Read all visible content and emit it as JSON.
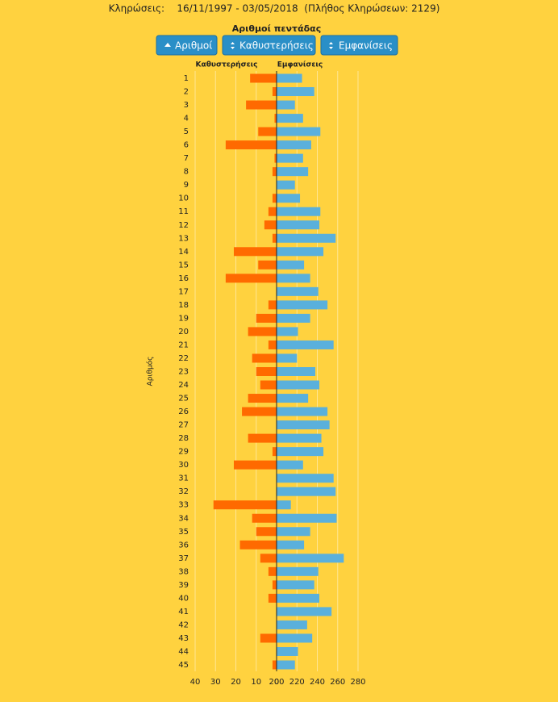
{
  "header": {
    "draws": "Κληρώσεις:    16/11/1997 - 03/05/2018  (Πλήθος Κληρώσεων: 2129)"
  },
  "buttons": [
    "Αριθμοί",
    "Καθυστερήσεις",
    "Εμφανίσεις"
  ],
  "chart_data": {
    "type": "bar",
    "orientation": "horizontal",
    "title": "Αριθμοί πεντάδας",
    "ylabel": "Αριθμός",
    "categories": [
      "1",
      "2",
      "3",
      "4",
      "5",
      "6",
      "7",
      "8",
      "9",
      "10",
      "11",
      "12",
      "13",
      "14",
      "15",
      "16",
      "17",
      "18",
      "19",
      "20",
      "21",
      "22",
      "23",
      "24",
      "25",
      "26",
      "27",
      "28",
      "29",
      "30",
      "31",
      "32",
      "33",
      "34",
      "35",
      "36",
      "37",
      "38",
      "39",
      "40",
      "41",
      "42",
      "43",
      "44",
      "45"
    ],
    "grid": true,
    "series": [
      {
        "name": "Καθυστερήσεις",
        "color": "#ff6a00",
        "direction": "left",
        "xlim": [
          0,
          40
        ],
        "xticks": [
          40,
          30,
          20,
          10,
          0
        ],
        "values": [
          13,
          2,
          15,
          1,
          9,
          25,
          1,
          2,
          0,
          2,
          4,
          6,
          2,
          21,
          9,
          25,
          0,
          4,
          10,
          14,
          4,
          12,
          10,
          8,
          14,
          17,
          0,
          14,
          2,
          21,
          0,
          0,
          31,
          12,
          10,
          18,
          8,
          4,
          2,
          4,
          0,
          0,
          8,
          0,
          2
        ]
      },
      {
        "name": "Εμφανίσεις",
        "color": "#5ab0dc",
        "direction": "right",
        "xlim": [
          200,
          280
        ],
        "xticks": [
          200,
          220,
          240,
          260,
          280
        ],
        "values": [
          225,
          237,
          218,
          226,
          243,
          234,
          226,
          231,
          218,
          223,
          243,
          242,
          258,
          246,
          227,
          233,
          241,
          250,
          233,
          221,
          256,
          220,
          238,
          242,
          231,
          250,
          252,
          244,
          246,
          226,
          256,
          258,
          214,
          259,
          233,
          227,
          266,
          241,
          237,
          242,
          254,
          230,
          235,
          221,
          218
        ]
      }
    ]
  }
}
